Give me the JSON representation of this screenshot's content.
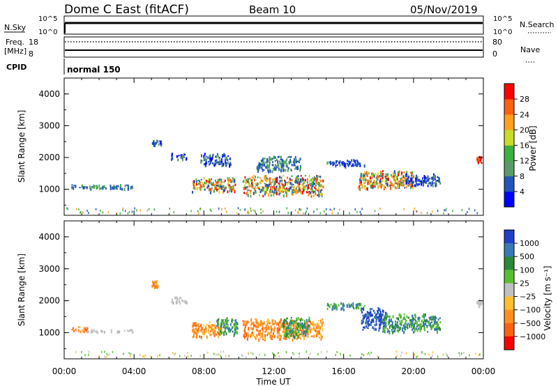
{
  "header": {
    "station": "Dome C East (fitACF)",
    "beam": "Beam 10",
    "date": "05/Nov/2019"
  },
  "top_panels": {
    "nsky_label": "N.Sky",
    "nsky_ticks": [
      "10^5",
      "10^0"
    ],
    "nsearch_label": "N.Search",
    "nsearch_ticks": [
      "10^5",
      "10^0"
    ],
    "freq_label_line1": "Freq.",
    "freq_label_line2": "[MHz]",
    "freq_ticks": [
      "18",
      "8"
    ],
    "nave_label": "Nave",
    "nave_ticks": [
      "80",
      "0"
    ],
    "cpid_label": "CPID",
    "cpid_value": "normal 150"
  },
  "chart_data": [
    {
      "type": "heatmap",
      "name": "power",
      "ylabel": "Slant Range [km]",
      "ylim": [
        180,
        4500
      ],
      "yticks": [
        "1000",
        "2000",
        "3000",
        "4000"
      ],
      "xlim": [
        0,
        24
      ],
      "colorbar": {
        "label": "Power [dB]",
        "ticks": [
          "4",
          "8",
          "12",
          "16",
          "20",
          "24",
          "28"
        ],
        "colors": [
          "#0000ff",
          "#2255bb",
          "#5a9a6a",
          "#3cb040",
          "#c8dc28",
          "#ffa020",
          "#ff6010",
          "#ff0000"
        ]
      },
      "regions": [
        {
          "t": [
            0.4,
            3.9
          ],
          "r": [
            1040,
            1170
          ],
          "scale": "mid"
        },
        {
          "t": [
            6.1,
            7.0
          ],
          "r": [
            1950,
            2150
          ],
          "scale": "low"
        },
        {
          "t": [
            5.0,
            5.6
          ],
          "r": [
            2400,
            2600
          ],
          "scale": "low"
        },
        {
          "t": [
            7.3,
            9.8
          ],
          "r": [
            950,
            1380
          ],
          "scale": "high"
        },
        {
          "t": [
            7.8,
            9.5
          ],
          "r": [
            1750,
            2150
          ],
          "scale": "low"
        },
        {
          "t": [
            10.2,
            14.8
          ],
          "r": [
            820,
            1450
          ],
          "scale": "high"
        },
        {
          "t": [
            11.0,
            13.5
          ],
          "r": [
            1600,
            2050
          ],
          "scale": "mid"
        },
        {
          "t": [
            15.0,
            17.2
          ],
          "r": [
            1750,
            1950
          ],
          "scale": "low"
        },
        {
          "t": [
            16.8,
            20.0
          ],
          "r": [
            1050,
            1600
          ],
          "scale": "high"
        },
        {
          "t": [
            19.5,
            21.5
          ],
          "r": [
            1100,
            1500
          ],
          "scale": "low"
        },
        {
          "t": [
            23.6,
            23.9
          ],
          "r": [
            1850,
            2050
          ],
          "scale": "hot"
        }
      ]
    },
    {
      "type": "heatmap",
      "name": "velocity",
      "ylabel": "Slant Range [km]",
      "ylim": [
        180,
        4500
      ],
      "yticks": [
        "1000",
        "2000",
        "3000",
        "4000"
      ],
      "xlim": [
        0,
        24
      ],
      "xticks": [
        "00:00",
        "04:00",
        "08:00",
        "12:00",
        "16:00",
        "20:00",
        "00:00"
      ],
      "xlabel": "Time UT",
      "colorbar": {
        "label": "Velocity [m s⁻¹]",
        "ticks": [
          "1000",
          "500",
          "100",
          "25",
          "−25",
          "−100",
          "−500",
          "−1000"
        ],
        "colors": [
          "#2040c8",
          "#3a7ab4",
          "#2a8a3a",
          "#58c030",
          "#c0c0c0",
          "#ffc030",
          "#ff9020",
          "#ff6010",
          "#ff0000"
        ]
      },
      "regions": [
        {
          "t": [
            0.4,
            1.3
          ],
          "r": [
            1040,
            1200
          ],
          "scale": "orange"
        },
        {
          "t": [
            1.3,
            3.9
          ],
          "r": [
            1040,
            1120
          ],
          "scale": "gray"
        },
        {
          "t": [
            5.0,
            5.4
          ],
          "r": [
            2450,
            2650
          ],
          "scale": "orange"
        },
        {
          "t": [
            6.1,
            7.0
          ],
          "r": [
            1950,
            2150
          ],
          "scale": "gray"
        },
        {
          "t": [
            7.3,
            9.0
          ],
          "r": [
            900,
            1350
          ],
          "scale": "orange"
        },
        {
          "t": [
            8.7,
            9.9
          ],
          "r": [
            950,
            1500
          ],
          "scale": "green"
        },
        {
          "t": [
            10.2,
            14.8
          ],
          "r": [
            820,
            1450
          ],
          "scale": "orange"
        },
        {
          "t": [
            12.5,
            14.0
          ],
          "r": [
            900,
            1500
          ],
          "scale": "green"
        },
        {
          "t": [
            15.0,
            17.2
          ],
          "r": [
            1750,
            1950
          ],
          "scale": "green"
        },
        {
          "t": [
            17.0,
            18.4
          ],
          "r": [
            1100,
            1800
          ],
          "scale": "blue"
        },
        {
          "t": [
            18.2,
            21.5
          ],
          "r": [
            1050,
            1600
          ],
          "scale": "green"
        },
        {
          "t": [
            23.6,
            23.9
          ],
          "r": [
            1850,
            2050
          ],
          "scale": "gray"
        }
      ]
    }
  ]
}
